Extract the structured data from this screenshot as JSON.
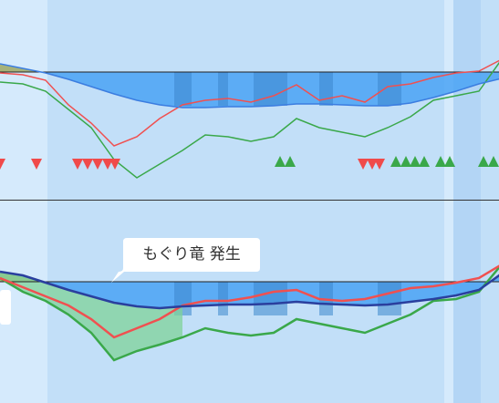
{
  "chart_data": {
    "type": "line",
    "annotation": "もぐり竜 発生",
    "xlim": [
      0,
      547
    ],
    "x": [
      0,
      25,
      50,
      75,
      100,
      125,
      150,
      175,
      200,
      225,
      250,
      275,
      300,
      325,
      350,
      375,
      400,
      425,
      450,
      475,
      500,
      525,
      550
    ],
    "panels": [
      {
        "ylim": [
          -140,
          79
        ],
        "series": [
          {
            "color": "#3b7de0",
            "values": [
              9,
              4,
              -1,
              -8,
              -16,
              -24,
              -31,
              -36,
              -39,
              -39,
              -38,
              -38,
              -37,
              -35,
              -35,
              -36,
              -37,
              -37,
              -34,
              -28,
              -21,
              -13,
              -7
            ]
          },
          {
            "color": "#f05050",
            "values": [
              -1,
              -3,
              -9,
              -36,
              -56,
              -81,
              -71,
              -51,
              -36,
              -31,
              -29,
              -33,
              -26,
              -14,
              -31,
              -26,
              -33,
              -16,
              -13,
              -6,
              -1,
              1,
              14
            ]
          },
          {
            "color": "#3aa84a",
            "values": [
              -11,
              -13,
              -21,
              -41,
              -61,
              -96,
              -116,
              -101,
              -86,
              -69,
              -71,
              -76,
              -71,
              -51,
              -61,
              -66,
              -71,
              -61,
              -49,
              -31,
              -26,
              -21,
              14
            ]
          }
        ],
        "markers": {
          "down_color": "#f04a4a",
          "up_color": "#3aa84a",
          "down_x": [
            0,
            40,
            85,
            96,
            107,
            118,
            126,
            398,
            408,
            416
          ],
          "up_x": [
            307,
            318,
            434,
            445,
            455,
            465,
            483,
            493,
            530,
            541
          ]
        }
      },
      {
        "ylim": [
          -133,
          89
        ],
        "series": [
          {
            "color": "#2a3f9e",
            "values": [
              11,
              7,
              -1,
              -9,
              -16,
              -23,
              -27,
              -29,
              -27,
              -26,
              -25,
              -25,
              -24,
              -22,
              -24,
              -25,
              -26,
              -25,
              -22,
              -19,
              -15,
              -9,
              9
            ]
          },
          {
            "color": "#f05050",
            "values": [
              4,
              -6,
              -16,
              -26,
              -41,
              -61,
              -51,
              -41,
              -26,
              -21,
              -21,
              -17,
              -11,
              -9,
              -19,
              -21,
              -19,
              -13,
              -7,
              -5,
              -1,
              4,
              19
            ]
          },
          {
            "color": "#3aa84a",
            "values": [
              4,
              -11,
              -21,
              -36,
              -56,
              -86,
              -76,
              -69,
              -61,
              -51,
              -56,
              -59,
              -56,
              -41,
              -46,
              -51,
              -56,
              -46,
              -36,
              -21,
              -19,
              -11,
              19
            ]
          }
        ]
      }
    ]
  }
}
